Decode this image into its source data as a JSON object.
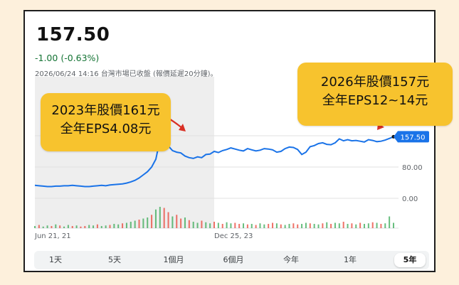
{
  "quote": {
    "price": "157.50",
    "change": "-1.00 (-0.63%)",
    "timestamp": "2026/06/24 14:16 台灣市場已收盤 (報價延遲20分鐘)。"
  },
  "callouts": {
    "left_line1": "2023年股價161元",
    "left_line2": "全年EPS4.08元",
    "right_line1": "2026年股價157元",
    "right_line2": "全年EPS12~14元"
  },
  "range_tabs": [
    {
      "label": "1天",
      "active": false
    },
    {
      "label": "5天",
      "active": false
    },
    {
      "label": "1個月",
      "active": false
    },
    {
      "label": "6個月",
      "active": false
    },
    {
      "label": "今年",
      "active": false
    },
    {
      "label": "1年",
      "active": false
    },
    {
      "label": "5年",
      "active": true
    }
  ],
  "colors": {
    "line": "#1a73e8",
    "up": "#34a853",
    "down": "#ea4335",
    "callout": "#f7c32e",
    "arrow": "#d93025"
  },
  "chart_data": {
    "type": "line",
    "x_tick_labels": [
      "Jun 21, 21",
      "Dec 25, 23"
    ],
    "y_tick_labels": [
      "80.00",
      "0.00"
    ],
    "ylim": [
      -20,
      200
    ],
    "current_label": "157.50",
    "series": [
      {
        "x": [
          0,
          3,
          6,
          9,
          12,
          15,
          18,
          21,
          24,
          27,
          30,
          33,
          36,
          39,
          42,
          45,
          48,
          51,
          54,
          57,
          60,
          63,
          66,
          69,
          72,
          75,
          78,
          81,
          84,
          87,
          90,
          93,
          96,
          99,
          102,
          105,
          108,
          111,
          114,
          117,
          120,
          123,
          126,
          129,
          132,
          135,
          138,
          141,
          144,
          147,
          150,
          153,
          156,
          159,
          162,
          165,
          168,
          171,
          174,
          177,
          180,
          183,
          186,
          189,
          192,
          195,
          198,
          201,
          204,
          207,
          210,
          213,
          216,
          219,
          222,
          225,
          228,
          231,
          234,
          237,
          240,
          243,
          246,
          249,
          252,
          255,
          258
        ],
        "values": [
          33,
          32,
          31,
          30,
          30,
          31,
          31,
          32,
          32,
          33,
          32,
          31,
          30,
          30,
          31,
          32,
          33,
          32,
          34,
          35,
          36,
          37,
          39,
          42,
          46,
          52,
          60,
          68,
          80,
          100,
          150,
          161,
          134,
          122,
          118,
          116,
          108,
          104,
          102,
          106,
          104,
          112,
          113,
          120,
          117,
          122,
          125,
          129,
          126,
          123,
          121,
          127,
          124,
          121,
          123,
          127,
          126,
          124,
          118,
          120,
          127,
          131,
          130,
          125,
          112,
          118,
          132,
          135,
          140,
          142,
          138,
          137,
          142,
          152,
          147,
          150,
          147,
          148,
          146,
          144,
          150,
          148,
          145,
          146,
          149,
          153,
          157.5
        ]
      }
    ],
    "volume": {
      "values": [
        4,
        6,
        3,
        5,
        4,
        7,
        5,
        3,
        6,
        4,
        5,
        3,
        4,
        6,
        5,
        7,
        4,
        5,
        6,
        8,
        7,
        9,
        10,
        12,
        14,
        16,
        18,
        20,
        25,
        35,
        40,
        38,
        30,
        22,
        25,
        18,
        20,
        15,
        12,
        10,
        14,
        11,
        9,
        12,
        10,
        8,
        11,
        9,
        10,
        8,
        9,
        7,
        8,
        6,
        9,
        7,
        8,
        10,
        9,
        7,
        6,
        8,
        9,
        7,
        8,
        10,
        9,
        8,
        7,
        9,
        11,
        8,
        10,
        9,
        12,
        8,
        9,
        7,
        10,
        8,
        9,
        11,
        10,
        8,
        9,
        22,
        10
      ],
      "up": [
        1,
        0,
        1,
        1,
        0,
        1,
        0,
        1,
        1,
        0,
        1,
        0,
        0,
        1,
        1,
        0,
        1,
        1,
        0,
        1,
        1,
        0,
        1,
        1,
        1,
        0,
        1,
        1,
        0,
        1,
        1,
        0,
        0,
        1,
        0,
        0,
        1,
        0,
        1,
        1,
        0,
        1,
        1,
        0,
        1,
        0,
        1,
        1,
        0,
        0,
        1,
        0,
        1,
        0,
        1,
        1,
        0,
        0,
        1,
        0,
        1,
        1,
        0,
        0,
        1,
        1,
        0,
        1,
        1,
        0,
        1,
        0,
        1,
        1,
        0,
        1,
        0,
        1,
        0,
        1,
        1,
        0,
        1,
        0,
        1,
        1,
        1
      ]
    }
  }
}
